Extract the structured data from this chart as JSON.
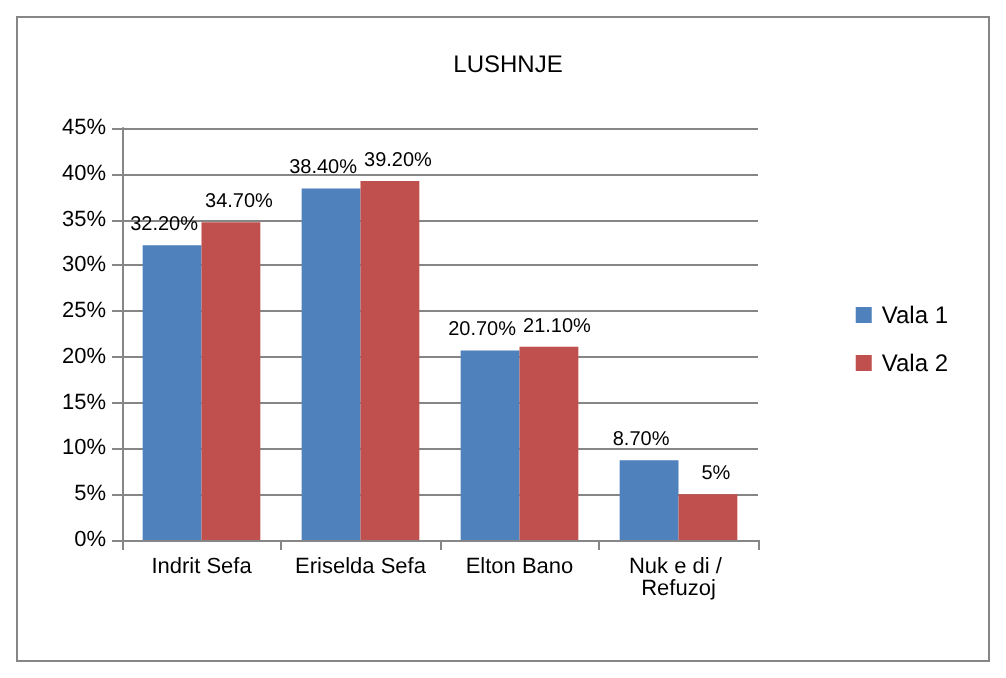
{
  "chart_data": {
    "type": "bar",
    "title": "LUSHNJE",
    "categories": [
      "Indrit Sefa",
      "Eriselda Sefa",
      "Elton Bano",
      "Nuk e di / Refuzoj"
    ],
    "series": [
      {
        "name": "Vala 1",
        "color": "#4f81bd",
        "values": [
          32.2,
          38.4,
          20.7,
          8.7
        ],
        "value_labels": [
          "32.20%",
          "38.40%",
          "20.70%",
          "8.70%"
        ]
      },
      {
        "name": "Vala 2",
        "color": "#c0504d",
        "values": [
          34.7,
          39.2,
          21.1,
          5
        ],
        "value_labels": [
          "34.70%",
          "39.20%",
          "21.10%",
          "5%"
        ]
      }
    ],
    "ylim": [
      0,
      45
    ],
    "yticks": [
      {
        "value": 0,
        "label": "0%"
      },
      {
        "value": 5,
        "label": "5%"
      },
      {
        "value": 10,
        "label": "10%"
      },
      {
        "value": 15,
        "label": "15%"
      },
      {
        "value": 20,
        "label": "20%"
      },
      {
        "value": 25,
        "label": "25%"
      },
      {
        "value": 30,
        "label": "30%"
      },
      {
        "value": 35,
        "label": "35%"
      },
      {
        "value": 40,
        "label": "40%"
      },
      {
        "value": 45,
        "label": "45%"
      }
    ],
    "grid": "y",
    "legend": "right"
  }
}
